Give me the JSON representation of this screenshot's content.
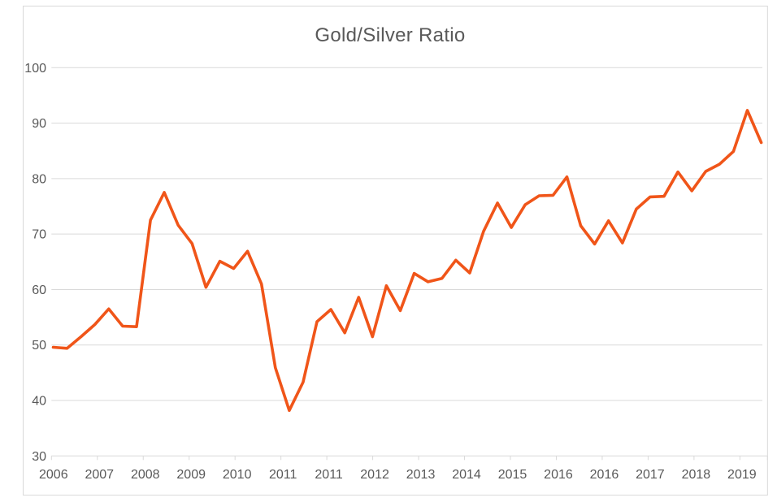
{
  "chart": {
    "background": "#FFFFFF",
    "border_color": "#D9D9D9",
    "grid_color": "#D9D9D9",
    "axis_color": "#D9D9D9",
    "text_color": "#595959",
    "line_color": "#F05519"
  },
  "chart_data": {
    "type": "line",
    "title": "Gold/Silver Ratio",
    "legend": "none",
    "grid": "horizontal",
    "x_axis": {
      "tick_labels": [
        "2006",
        "2007",
        "2008",
        "2009",
        "2010",
        "2011",
        "2011",
        "2012",
        "2013",
        "2014",
        "2015",
        "2016",
        "2016",
        "2017",
        "2018",
        "2019"
      ]
    },
    "y_axis": {
      "min": 30,
      "max": 100,
      "tick_step": 10,
      "tick_labels": [
        "30",
        "40",
        "50",
        "60",
        "70",
        "80",
        "90",
        "100"
      ]
    },
    "series": [
      {
        "name": "Gold/Silver Ratio",
        "color": "#F05519",
        "points_per_year": 4,
        "x_start": "2006",
        "x_end": "2019",
        "values": [
          49.6,
          49.4,
          51.5,
          53.7,
          56.5,
          53.4,
          53.3,
          72.5,
          77.5,
          71.6,
          68.3,
          60.4,
          65.1,
          63.8,
          66.9,
          61.0,
          45.9,
          38.2,
          43.3,
          54.2,
          56.4,
          52.2,
          58.6,
          51.5,
          60.7,
          56.2,
          62.9,
          61.4,
          62.0,
          65.3,
          63.0,
          70.5,
          75.6,
          71.2,
          75.3,
          76.9,
          77.0,
          80.3,
          71.5,
          68.2,
          72.4,
          68.4,
          74.5,
          76.7,
          76.8,
          81.2,
          77.8,
          81.3,
          82.6,
          84.9,
          92.3,
          86.5
        ]
      }
    ]
  }
}
